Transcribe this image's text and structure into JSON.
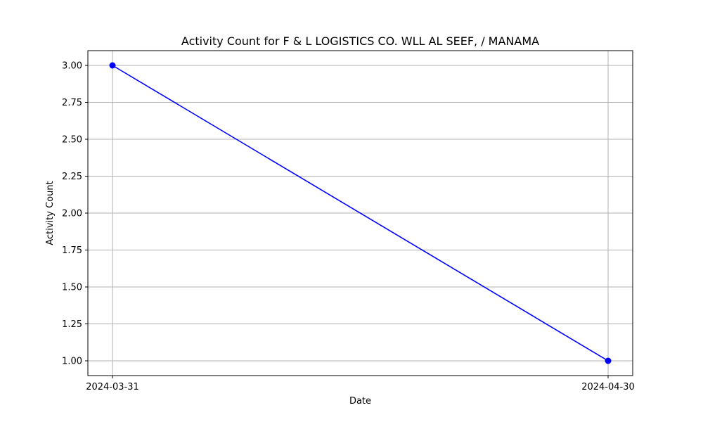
{
  "chart_data": {
    "type": "line",
    "title": "Activity Count for F & L LOGISTICS CO. WLL AL SEEF, / MANAMA",
    "xlabel": "Date",
    "ylabel": "Activity Count",
    "x": [
      "2024-03-31",
      "2024-04-30"
    ],
    "series": [
      {
        "values": [
          3.0,
          1.0
        ],
        "color": "#0000ff",
        "marker": "circle"
      }
    ],
    "xticks": [
      "2024-03-31",
      "2024-04-30"
    ],
    "yticks": [
      "1.00",
      "1.25",
      "1.50",
      "1.75",
      "2.00",
      "2.25",
      "2.50",
      "2.75",
      "3.00"
    ],
    "ylim": [
      0.9,
      3.1
    ],
    "grid": true,
    "colors": {
      "grid": "#b0b0b0",
      "axes": "#000000"
    }
  }
}
